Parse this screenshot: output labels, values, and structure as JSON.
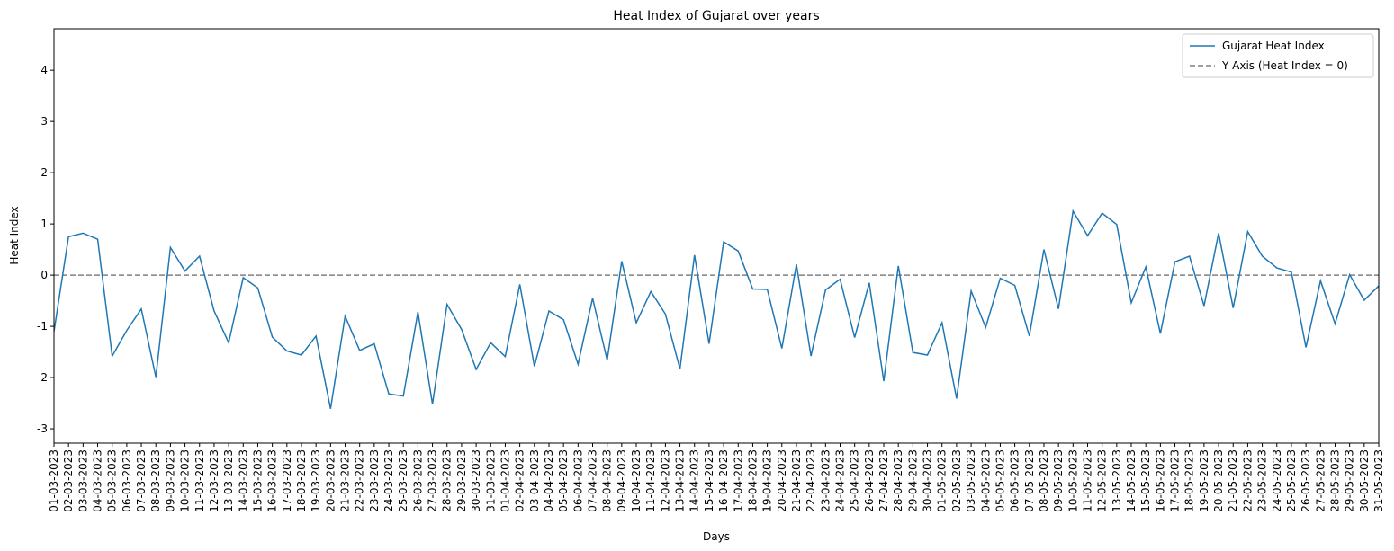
{
  "chart_data": {
    "type": "line",
    "title": "Heat Index of Gujarat over years",
    "xlabel": "Days",
    "ylabel": "Heat Index",
    "categories": [
      "01-03-2023",
      "02-03-2023",
      "03-03-2023",
      "04-03-2023",
      "05-03-2023",
      "06-03-2023",
      "07-03-2023",
      "08-03-2023",
      "09-03-2023",
      "10-03-2023",
      "11-03-2023",
      "12-03-2023",
      "13-03-2023",
      "14-03-2023",
      "15-03-2023",
      "16-03-2023",
      "17-03-2023",
      "18-03-2023",
      "19-03-2023",
      "20-03-2023",
      "21-03-2023",
      "22-03-2023",
      "23-03-2023",
      "24-03-2023",
      "25-03-2023",
      "26-03-2023",
      "27-03-2023",
      "28-03-2023",
      "29-03-2023",
      "30-03-2023",
      "31-03-2023",
      "01-04-2023",
      "02-04-2023",
      "03-04-2023",
      "04-04-2023",
      "05-04-2023",
      "06-04-2023",
      "07-04-2023",
      "08-04-2023",
      "09-04-2023",
      "10-04-2023",
      "11-04-2023",
      "12-04-2023",
      "13-04-2023",
      "14-04-2023",
      "15-04-2023",
      "16-04-2023",
      "17-04-2023",
      "18-04-2023",
      "19-04-2023",
      "20-04-2023",
      "21-04-2023",
      "22-04-2023",
      "23-04-2023",
      "24-04-2023",
      "25-04-2023",
      "26-04-2023",
      "27-04-2023",
      "28-04-2023",
      "29-04-2023",
      "30-04-2023",
      "01-05-2023",
      "02-05-2023",
      "03-05-2023",
      "04-05-2023",
      "05-05-2023",
      "06-05-2023",
      "07-05-2023",
      "08-05-2023",
      "09-05-2023",
      "10-05-2023",
      "11-05-2023",
      "12-05-2023",
      "13-05-2023",
      "14-05-2023",
      "15-05-2023",
      "16-05-2023",
      "17-05-2023",
      "18-05-2023",
      "19-05-2023",
      "20-05-2023",
      "21-05-2023",
      "22-05-2023",
      "23-05-2023",
      "24-05-2023",
      "25-05-2023",
      "26-05-2023",
      "27-05-2023",
      "28-05-2023",
      "29-05-2023",
      "30-05-2023",
      "31-05-2023"
    ],
    "series": [
      {
        "name": "Gujarat Heat Index",
        "color": "#1f77b4",
        "values": [
          -1.1,
          0.75,
          0.82,
          0.7,
          -1.58,
          -1.08,
          -0.66,
          -1.99,
          0.54,
          0.08,
          0.37,
          -0.7,
          -1.32,
          -0.05,
          -0.25,
          -1.21,
          -1.48,
          -1.56,
          -1.19,
          -2.61,
          -0.8,
          -1.47,
          -1.34,
          -2.32,
          -2.36,
          -0.72,
          -2.52,
          -0.57,
          -1.06,
          -1.84,
          -1.32,
          -1.59,
          -0.18,
          -1.78,
          -0.7,
          -0.87,
          -1.74,
          -0.45,
          -1.66,
          0.27,
          -0.93,
          -0.32,
          -0.76,
          -1.83,
          0.39,
          -1.34,
          0.65,
          0.47,
          -0.27,
          -0.28,
          -1.43,
          0.21,
          -1.58,
          -0.29,
          -0.08,
          -1.22,
          -0.15,
          -2.07,
          0.18,
          -1.51,
          -1.56,
          -0.93,
          -2.41,
          -0.31,
          -1.02,
          -0.06,
          -0.2,
          -1.19,
          0.5,
          -0.66,
          1.25,
          0.77,
          1.21,
          0.99,
          -0.54,
          0.16,
          -1.14,
          0.26,
          0.37,
          -0.6,
          0.82,
          -0.64,
          0.85,
          0.37,
          0.14,
          0.06,
          -1.41,
          -0.11,
          -0.95,
          0.01,
          -0.49,
          -0.21
        ]
      }
    ],
    "hline": {
      "name": "Y Axis (Heat Index = 0)",
      "value": 0,
      "color": "#808080"
    },
    "ylim": [
      -3.28,
      4.81
    ],
    "yticks": [
      -3,
      -2,
      -1,
      0,
      1,
      2,
      3,
      4
    ],
    "legend": "upper right"
  }
}
